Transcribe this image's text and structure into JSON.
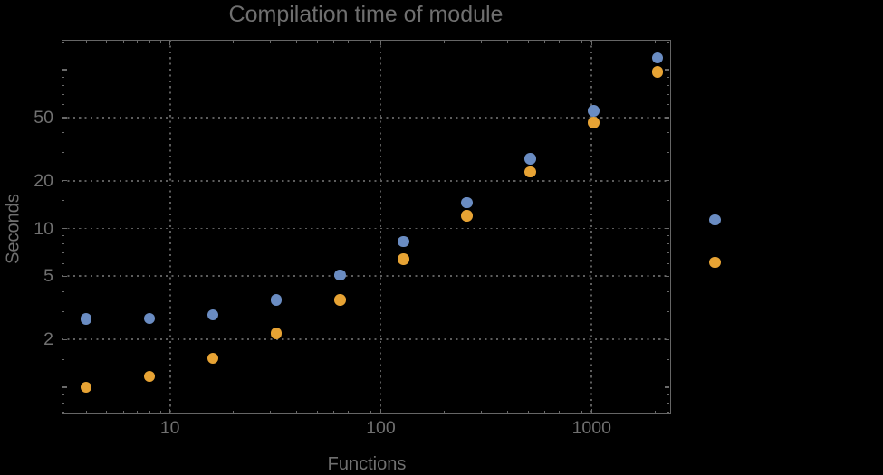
{
  "title": "Compilation time of module",
  "chart_data": {
    "type": "scatter",
    "title": "Compilation time of module",
    "xlabel": "Functions",
    "ylabel": "Seconds",
    "x_scale": "log",
    "y_scale": "log",
    "xlim": [
      3.07,
      2339
    ],
    "ylim": [
      0.684,
      153.4
    ],
    "grid": "dotted",
    "legend": "none",
    "background_color": "#000000",
    "frame_color": "#666666",
    "grid_color": "#5d5d5d",
    "text_color": "#707070",
    "x": [
      4,
      8,
      16,
      32,
      64,
      128,
      256,
      512,
      1024,
      2048,
      3840
    ],
    "series": [
      {
        "name": "blue",
        "color": "#6A8CC2",
        "values": [
          2.7,
          2.72,
          2.85,
          3.55,
          5.1,
          8.3,
          14.5,
          27.5,
          55,
          119,
          11.3
        ]
      },
      {
        "name": "orange",
        "color": "#E7A334",
        "values": [
          1.0,
          1.17,
          1.52,
          2.18,
          3.55,
          6.4,
          12.0,
          22.7,
          46.5,
          97,
          6.1
        ]
      }
    ],
    "x_ticks_major": {
      "values": [
        10,
        100,
        1000
      ],
      "labels": [
        "10",
        "100",
        "1000"
      ]
    },
    "x_ticks_minor": [
      4,
      5,
      6,
      7,
      8,
      9,
      20,
      30,
      40,
      50,
      60,
      70,
      80,
      90,
      200,
      300,
      400,
      500,
      600,
      700,
      800,
      900,
      2000
    ],
    "y_ticks_major": {
      "values": [
        2,
        5,
        10,
        20,
        50
      ],
      "labels": [
        "2",
        "5",
        "10",
        "20",
        "50"
      ]
    },
    "y_ticks_major_unlabeled": [
      1,
      100
    ],
    "y_ticks_minor": [
      0.7,
      0.8,
      0.9,
      1.5,
      3,
      4,
      6,
      7,
      8,
      9,
      15,
      30,
      40,
      60,
      70,
      80,
      90,
      150
    ],
    "gridlines_x": [
      10,
      100,
      1000
    ],
    "gridlines_y": [
      2,
      5,
      10,
      20,
      50
    ]
  }
}
